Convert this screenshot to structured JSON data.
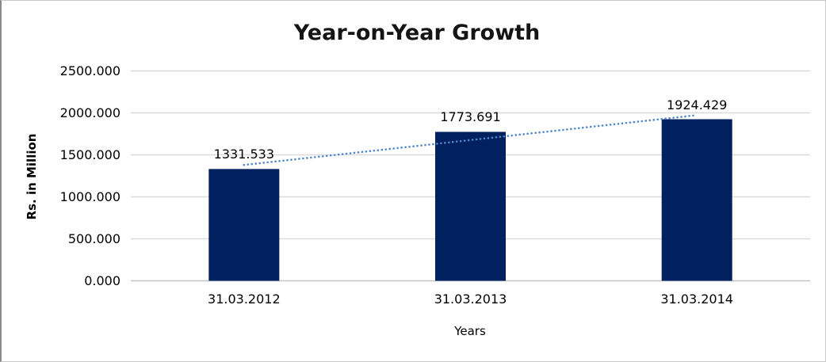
{
  "chart_data": {
    "type": "bar",
    "title": "Year-on-Year Growth",
    "xlabel": "Years",
    "ylabel": "Rs. in Million",
    "categories": [
      "31.03.2012",
      "31.03.2013",
      "31.03.2014"
    ],
    "values": [
      1331.533,
      1773.691,
      1924.429
    ],
    "data_labels": [
      "1331.533",
      "1773.691",
      "1924.429"
    ],
    "y_ticks": [
      "0.000",
      "500.000",
      "1000.000",
      "1500.000",
      "2000.000",
      "2500.000"
    ],
    "ylim": [
      0,
      2500
    ],
    "grid": "horizontal",
    "legend": "none",
    "trendline": {
      "kind": "linear",
      "style": "dotted"
    },
    "colors": {
      "bar": "#002060",
      "trendline": "#4f87c9",
      "gridline": "#dadada",
      "axis_line": "#c3c3c3",
      "background": "#ffffff"
    }
  }
}
